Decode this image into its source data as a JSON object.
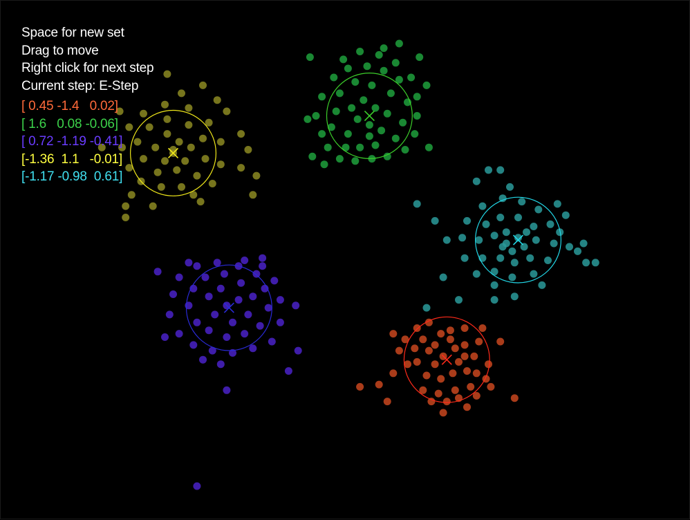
{
  "instructions": {
    "new_set": "Space for new set",
    "drag": "Drag to move",
    "next_step": "Right click for next step",
    "current_step": "Current step: E-Step"
  },
  "colors": {
    "background": "#000000",
    "text": "#ffffff"
  },
  "clusters": [
    {
      "label": "[ 0.45 -1.4   0.02]",
      "point_color": "#c8461e",
      "ring_color": "#ff2a1a",
      "text_color": "#ff6a3a",
      "center": [
        -0.45,
        -1.58
      ],
      "radius": 0.36,
      "points": [
        [
          -0.5,
          -1.35
        ],
        [
          -0.42,
          -1.4
        ],
        [
          -0.38,
          -1.48
        ],
        [
          -0.55,
          -1.45
        ],
        [
          -0.6,
          -1.5
        ],
        [
          -0.48,
          -1.55
        ],
        [
          -0.35,
          -1.6
        ],
        [
          -0.3,
          -1.55
        ],
        [
          -0.28,
          -1.68
        ],
        [
          -0.4,
          -1.7
        ],
        [
          -0.5,
          -1.75
        ],
        [
          -0.62,
          -1.72
        ],
        [
          -0.7,
          -1.6
        ],
        [
          -0.72,
          -1.48
        ],
        [
          -0.65,
          -1.4
        ],
        [
          -0.3,
          -1.45
        ],
        [
          -0.22,
          -1.55
        ],
        [
          -0.2,
          -1.7
        ],
        [
          -0.25,
          -1.82
        ],
        [
          -0.38,
          -1.85
        ],
        [
          -0.52,
          -1.88
        ],
        [
          -0.45,
          -1.95
        ],
        [
          -0.58,
          -1.95
        ],
        [
          -0.78,
          -1.62
        ],
        [
          -0.85,
          -1.5
        ],
        [
          -0.8,
          -1.4
        ],
        [
          -0.7,
          -1.3
        ],
        [
          -0.6,
          -1.25
        ],
        [
          -0.15,
          -1.3
        ],
        [
          -0.18,
          -1.42
        ],
        [
          -0.1,
          -1.62
        ],
        [
          -0.08,
          -1.82
        ],
        [
          -0.2,
          -1.9
        ],
        [
          -0.48,
          -2.05
        ],
        [
          -0.35,
          -1.92
        ],
        [
          -0.9,
          -1.7
        ],
        [
          -1.02,
          -1.8
        ],
        [
          -1.18,
          -1.82
        ],
        [
          -0.95,
          -1.95
        ],
        [
          0.0,
          -1.42
        ],
        [
          0.12,
          -1.92
        ],
        [
          -0.3,
          -1.3
        ],
        [
          -0.42,
          -1.32
        ],
        [
          -0.55,
          -1.62
        ],
        [
          -0.65,
          -1.85
        ],
        [
          -0.28,
          -2.0
        ],
        [
          -0.9,
          -1.35
        ],
        [
          -0.12,
          -1.75
        ]
      ]
    },
    {
      "label": "[ 1.6   0.08 -0.06]",
      "point_color": "#1ea03c",
      "ring_color": "#3ccf2a",
      "text_color": "#3cd24a",
      "center": [
        -1.1,
        0.58
      ],
      "radius": 0.36,
      "points": [
        [
          -1.1,
          0.5
        ],
        [
          -1.05,
          0.65
        ],
        [
          -1.15,
          0.72
        ],
        [
          -1.2,
          0.55
        ],
        [
          -1.28,
          0.42
        ],
        [
          -1.0,
          0.45
        ],
        [
          -0.95,
          0.6
        ],
        [
          -0.92,
          0.78
        ],
        [
          -1.08,
          0.85
        ],
        [
          -1.22,
          0.88
        ],
        [
          -1.35,
          0.78
        ],
        [
          -1.38,
          0.62
        ],
        [
          -1.42,
          0.48
        ],
        [
          -1.3,
          0.3
        ],
        [
          -1.18,
          0.3
        ],
        [
          -1.05,
          0.32
        ],
        [
          -0.88,
          0.38
        ],
        [
          -0.82,
          0.52
        ],
        [
          -0.78,
          0.7
        ],
        [
          -0.85,
          0.9
        ],
        [
          -0.98,
          0.98
        ],
        [
          -1.12,
          1.02
        ],
        [
          -1.28,
          1.0
        ],
        [
          -1.4,
          0.92
        ],
        [
          -1.5,
          0.75
        ],
        [
          -1.55,
          0.58
        ],
        [
          -1.5,
          0.42
        ],
        [
          -1.45,
          0.3
        ],
        [
          -1.35,
          0.2
        ],
        [
          -1.22,
          0.18
        ],
        [
          -1.08,
          0.2
        ],
        [
          -0.95,
          0.22
        ],
        [
          -0.8,
          0.28
        ],
        [
          -0.72,
          0.42
        ],
        [
          -0.7,
          0.58
        ],
        [
          -0.7,
          0.75
        ],
        [
          -0.75,
          0.92
        ],
        [
          -0.88,
          1.05
        ],
        [
          -1.02,
          1.12
        ],
        [
          -1.18,
          1.15
        ],
        [
          -1.62,
          0.55
        ],
        [
          -1.58,
          0.22
        ],
        [
          -1.48,
          0.15
        ],
        [
          -0.98,
          1.18
        ],
        [
          -0.85,
          1.22
        ],
        [
          -0.62,
          0.85
        ],
        [
          -0.6,
          0.3
        ],
        [
          -1.6,
          1.1
        ],
        [
          -1.32,
          1.08
        ],
        [
          -0.68,
          1.1
        ],
        [
          -1.25,
          0.65
        ],
        [
          -1.1,
          0.4
        ]
      ]
    },
    {
      "label": "[ 0.72 -1.19 -0.41]",
      "point_color": "#4a22c8",
      "ring_color": "#2a2ad8",
      "text_color": "#6a3cff",
      "center": [
        -2.28,
        -1.12
      ],
      "radius": 0.36,
      "points": [
        [
          -2.3,
          -1.1
        ],
        [
          -2.2,
          -1.05
        ],
        [
          -2.35,
          -0.95
        ],
        [
          -2.45,
          -1.02
        ],
        [
          -2.4,
          -1.18
        ],
        [
          -2.25,
          -1.25
        ],
        [
          -2.12,
          -1.18
        ],
        [
          -2.08,
          -1.02
        ],
        [
          -2.18,
          -0.9
        ],
        [
          -2.32,
          -0.82
        ],
        [
          -2.48,
          -0.85
        ],
        [
          -2.58,
          -0.95
        ],
        [
          -2.62,
          -1.1
        ],
        [
          -2.55,
          -1.25
        ],
        [
          -2.45,
          -1.32
        ],
        [
          -2.3,
          -1.38
        ],
        [
          -2.15,
          -1.35
        ],
        [
          -2.02,
          -1.28
        ],
        [
          -1.95,
          -1.12
        ],
        [
          -1.98,
          -0.95
        ],
        [
          -2.05,
          -0.82
        ],
        [
          -2.2,
          -0.75
        ],
        [
          -2.38,
          -0.72
        ],
        [
          -2.55,
          -0.75
        ],
        [
          -2.7,
          -0.85
        ],
        [
          -2.75,
          -1.0
        ],
        [
          -2.78,
          -1.18
        ],
        [
          -2.7,
          -1.35
        ],
        [
          -2.58,
          -1.45
        ],
        [
          -2.42,
          -1.5
        ],
        [
          -2.25,
          -1.52
        ],
        [
          -2.08,
          -1.48
        ],
        [
          -1.92,
          -1.42
        ],
        [
          -1.85,
          -1.25
        ],
        [
          -1.85,
          -1.05
        ],
        [
          -1.9,
          -0.88
        ],
        [
          -2.0,
          -0.75
        ],
        [
          -2.15,
          -0.7
        ],
        [
          -2.88,
          -0.8
        ],
        [
          -2.82,
          -1.38
        ],
        [
          -2.5,
          -1.58
        ],
        [
          -1.72,
          -1.1
        ],
        [
          -1.7,
          -1.5
        ],
        [
          -1.78,
          -1.68
        ],
        [
          -2.3,
          -1.85
        ],
        [
          -2.55,
          -2.7
        ],
        [
          -2.0,
          -0.68
        ],
        [
          -2.62,
          -0.72
        ],
        [
          -2.35,
          -1.62
        ]
      ]
    },
    {
      "label": "[-1.36  1.1   -0.01]",
      "point_color": "#8c8a22",
      "ring_color": "#f0e81a",
      "text_color": "#ffff40",
      "center": [
        -2.75,
        0.25
      ],
      "radius": 0.36,
      "points": [
        [
          -2.75,
          0.25
        ],
        [
          -2.7,
          0.35
        ],
        [
          -2.82,
          0.18
        ],
        [
          -2.9,
          0.3
        ],
        [
          -2.8,
          0.42
        ],
        [
          -2.65,
          0.18
        ],
        [
          -2.6,
          0.3
        ],
        [
          -2.72,
          0.1
        ],
        [
          -2.88,
          0.08
        ],
        [
          -3.0,
          0.2
        ],
        [
          -3.05,
          0.35
        ],
        [
          -2.95,
          0.48
        ],
        [
          -2.8,
          0.55
        ],
        [
          -2.62,
          0.5
        ],
        [
          -2.5,
          0.38
        ],
        [
          -2.48,
          0.2
        ],
        [
          -2.55,
          0.05
        ],
        [
          -2.68,
          -0.05
        ],
        [
          -2.85,
          -0.05
        ],
        [
          -3.02,
          0.0
        ],
        [
          -3.12,
          0.12
        ],
        [
          -3.18,
          0.3
        ],
        [
          -3.12,
          0.48
        ],
        [
          -3.0,
          0.6
        ],
        [
          -2.82,
          0.68
        ],
        [
          -2.62,
          0.65
        ],
        [
          -2.45,
          0.52
        ],
        [
          -2.35,
          0.35
        ],
        [
          -2.35,
          0.15
        ],
        [
          -2.42,
          -0.02
        ],
        [
          -2.58,
          -0.12
        ],
        [
          -3.1,
          -0.12
        ],
        [
          -3.15,
          -0.22
        ],
        [
          -3.2,
          0.62
        ],
        [
          -3.35,
          0.3
        ],
        [
          -2.3,
          0.62
        ],
        [
          -2.18,
          0.12
        ],
        [
          -2.12,
          0.28
        ],
        [
          -2.05,
          0.05
        ],
        [
          -2.08,
          -0.12
        ],
        [
          -2.8,
          0.95
        ],
        [
          -2.68,
          0.78
        ],
        [
          -2.5,
          0.85
        ],
        [
          -2.52,
          -0.18
        ],
        [
          -2.38,
          0.72
        ],
        [
          -2.92,
          -0.22
        ],
        [
          -3.15,
          -0.32
        ],
        [
          -2.18,
          0.42
        ],
        [
          -2.75,
          0.28
        ]
      ]
    },
    {
      "label": "[-1.17 -0.98  0.61]",
      "point_color": "#2a9a9a",
      "ring_color": "#22d8e8",
      "text_color": "#40e0f0",
      "center": [
        0.15,
        -0.52
      ],
      "radius": 0.36,
      "points": [
        [
          0.15,
          -0.5
        ],
        [
          0.05,
          -0.45
        ],
        [
          0.1,
          -0.62
        ],
        [
          0.2,
          -0.58
        ],
        [
          0.02,
          -0.58
        ],
        [
          -0.05,
          -0.48
        ],
        [
          0.0,
          -0.68
        ],
        [
          0.12,
          -0.72
        ],
        [
          0.25,
          -0.68
        ],
        [
          0.3,
          -0.52
        ],
        [
          0.28,
          -0.4
        ],
        [
          0.15,
          -0.32
        ],
        [
          0.0,
          -0.32
        ],
        [
          -0.12,
          -0.38
        ],
        [
          -0.18,
          -0.52
        ],
        [
          -0.15,
          -0.68
        ],
        [
          -0.05,
          -0.8
        ],
        [
          0.1,
          -0.85
        ],
        [
          0.28,
          -0.82
        ],
        [
          0.4,
          -0.7
        ],
        [
          0.45,
          -0.55
        ],
        [
          0.42,
          -0.38
        ],
        [
          0.32,
          -0.25
        ],
        [
          0.18,
          -0.18
        ],
        [
          0.02,
          -0.15
        ],
        [
          -0.15,
          -0.22
        ],
        [
          -0.28,
          -0.35
        ],
        [
          -0.32,
          -0.5
        ],
        [
          -0.3,
          -0.68
        ],
        [
          -0.2,
          -0.82
        ],
        [
          -0.05,
          -0.92
        ],
        [
          0.5,
          -0.45
        ],
        [
          0.58,
          -0.58
        ],
        [
          0.65,
          -0.62
        ],
        [
          0.72,
          -0.72
        ],
        [
          0.8,
          -0.72
        ],
        [
          0.7,
          -0.55
        ],
        [
          0.55,
          -0.3
        ],
        [
          0.48,
          -0.2
        ],
        [
          -0.45,
          -0.52
        ],
        [
          -0.55,
          -0.35
        ],
        [
          -0.7,
          -0.2
        ],
        [
          0.35,
          -0.92
        ],
        [
          0.12,
          -1.02
        ],
        [
          -0.05,
          -1.05
        ],
        [
          0.0,
          0.1
        ],
        [
          -0.1,
          0.1
        ],
        [
          -0.2,
          0.0
        ],
        [
          -0.48,
          -0.85
        ],
        [
          -0.35,
          -1.05
        ],
        [
          -0.62,
          -1.12
        ],
        [
          0.08,
          -0.05
        ],
        [
          0.22,
          -0.45
        ],
        [
          0.05,
          -0.55
        ]
      ]
    }
  ],
  "view": {
    "x_range": [
      -4.2,
      1.6
    ],
    "y_range": [
      -3.0,
      1.6
    ]
  }
}
